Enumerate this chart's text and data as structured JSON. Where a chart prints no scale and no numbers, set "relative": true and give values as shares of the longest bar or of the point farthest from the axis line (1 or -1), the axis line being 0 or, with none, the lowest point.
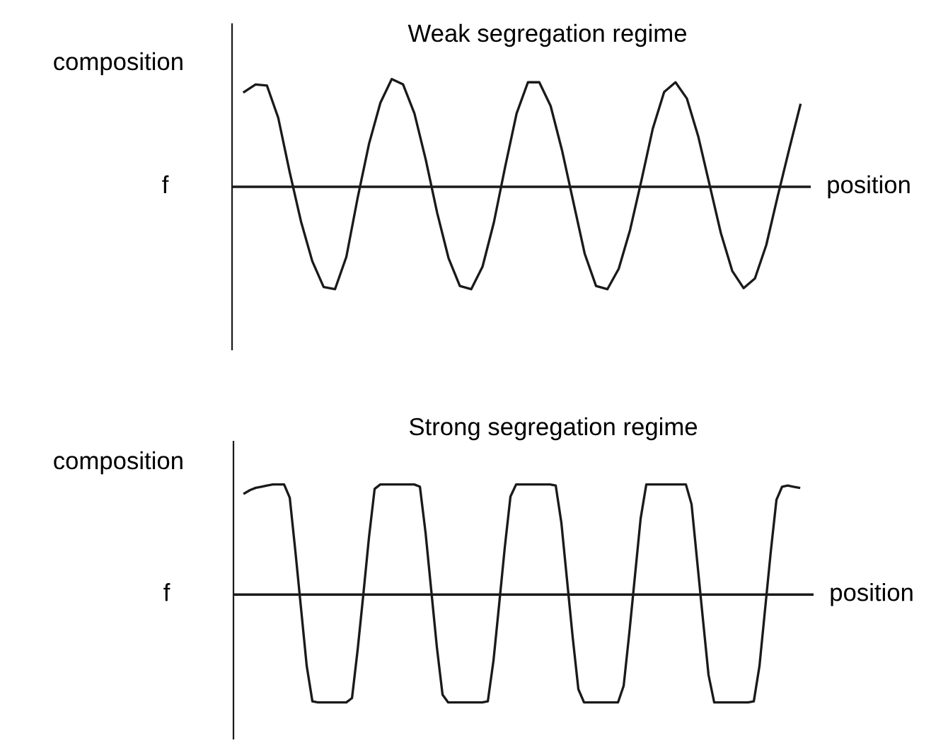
{
  "chart_data": [
    {
      "type": "line",
      "title": "Weak segregation regime",
      "xlabel": "position",
      "ylabel": "composition",
      "relative": true,
      "categories": [
        null,
        null,
        null,
        null,
        null,
        null,
        null,
        null,
        null,
        null,
        null,
        null,
        null,
        null,
        null,
        null,
        null,
        null,
        null,
        null,
        null,
        null,
        null,
        null,
        null,
        null,
        null,
        null,
        null,
        null,
        null,
        null,
        null,
        null,
        null,
        null,
        null,
        null,
        null,
        null,
        null,
        null,
        null,
        null,
        null,
        null,
        null,
        null,
        null,
        null
      ],
      "series": [
        {
          "color": "#1a1a1a",
          "values": [
            0.88,
            0.95,
            0.94,
            0.64,
            0.14,
            -0.32,
            -0.69,
            -0.93,
            -0.95,
            -0.65,
            -0.1,
            0.4,
            0.78,
            1.0,
            0.95,
            0.68,
            0.25,
            -0.24,
            -0.66,
            -0.92,
            -0.95,
            -0.74,
            -0.33,
            0.19,
            0.68,
            0.97,
            0.97,
            0.75,
            0.34,
            -0.14,
            -0.62,
            -0.92,
            -0.95,
            -0.76,
            -0.4,
            0.06,
            0.54,
            0.88,
            0.97,
            0.82,
            0.47,
            0.02,
            -0.43,
            -0.78,
            -0.94,
            -0.85,
            -0.54,
            -0.09,
            0.34,
            0.76
          ]
        }
      ],
      "ref_lines": [
        {
          "axis": "y",
          "value": 0,
          "label": "f",
          "color": "#1a1a1a"
        }
      ]
    },
    {
      "type": "line",
      "title": "Strong segregation regime",
      "xlabel": "position",
      "ylabel": "composition",
      "relative": true,
      "categories": [
        null,
        null,
        null,
        null,
        null,
        null,
        null,
        null,
        null,
        null,
        null,
        null,
        null,
        null,
        null,
        null,
        null,
        null,
        null,
        null,
        null,
        null,
        null,
        null,
        null,
        null,
        null,
        null,
        null,
        null,
        null,
        null,
        null,
        null,
        null,
        null,
        null,
        null,
        null,
        null,
        null,
        null,
        null,
        null,
        null,
        null,
        null,
        null,
        null,
        null,
        null,
        null,
        null,
        null,
        null,
        null,
        null,
        null,
        null,
        null,
        null,
        null,
        null,
        null,
        null,
        null,
        null,
        null,
        null,
        null,
        null,
        null,
        null,
        null,
        null,
        null,
        null,
        null,
        null,
        null,
        null,
        null,
        null,
        null,
        null,
        null,
        null,
        null,
        null,
        null,
        null,
        null,
        null,
        null,
        null,
        null,
        null,
        null,
        null
      ],
      "series": [
        {
          "color": "#1a1a1a",
          "values": [
            0.92,
            0.95,
            0.97,
            0.98,
            0.99,
            1.0,
            1.0,
            1.0,
            0.88,
            0.39,
            -0.13,
            -0.65,
            -0.97,
            -0.98,
            -0.98,
            -0.98,
            -0.98,
            -0.98,
            -0.98,
            -0.94,
            -0.5,
            0,
            0.52,
            0.96,
            1.0,
            1.0,
            1.0,
            1.0,
            1.0,
            1.0,
            1.0,
            0.98,
            0.56,
            0.04,
            -0.48,
            -0.91,
            -0.98,
            -0.98,
            -0.98,
            -0.98,
            -0.98,
            -0.98,
            -0.98,
            -0.97,
            -0.6,
            -0.09,
            0.43,
            0.89,
            1.0,
            1.0,
            1.0,
            1.0,
            1.0,
            1.0,
            1.0,
            0.99,
            0.65,
            0.13,
            -0.39,
            -0.86,
            -0.98,
            -0.98,
            -0.98,
            -0.98,
            -0.98,
            -0.98,
            -0.98,
            -0.83,
            -0.35,
            0.17,
            0.69,
            1.0,
            1.0,
            1.0,
            1.0,
            1.0,
            1.0,
            1.0,
            1.0,
            0.82,
            0.3,
            -0.22,
            -0.73,
            -0.98,
            -0.98,
            -0.98,
            -0.98,
            -0.98,
            -0.98,
            -0.98,
            -0.97,
            -0.65,
            -0.13,
            0.39,
            0.86,
            0.98,
            0.99,
            0.98,
            0.97
          ]
        }
      ],
      "ref_lines": [
        {
          "axis": "y",
          "value": 0,
          "label": "f",
          "color": "#1a1a1a"
        }
      ]
    }
  ]
}
